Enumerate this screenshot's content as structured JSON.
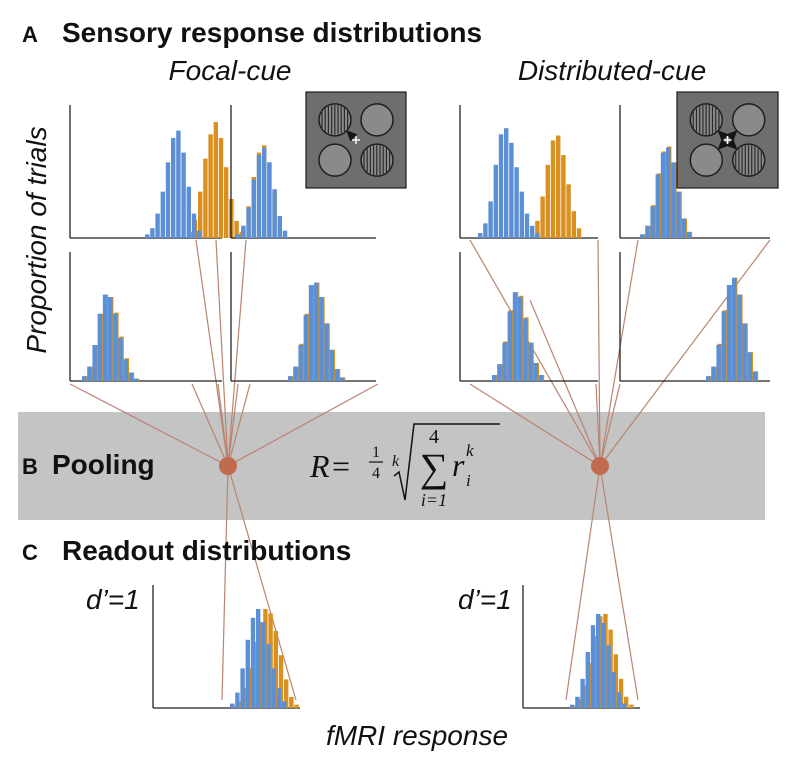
{
  "colors": {
    "blue": "#5b8fd6",
    "orange": "#d9901f",
    "connector": "#b98470",
    "node": "#c06a4e",
    "band": "#c4c4c4",
    "axis": "#222222",
    "inset_bg": "#6e6e6e"
  },
  "section_a": {
    "letter": "A",
    "title": "Sensory response distributions",
    "focal_label": "Focal-cue",
    "distributed_label": "Distributed-cue",
    "y_label": "Proportion of trials"
  },
  "section_b": {
    "letter": "B",
    "title": "Pooling",
    "formula": {
      "lhs": "R",
      "equals": "=",
      "frac_num": "1",
      "frac_den": "4",
      "root_index": "k",
      "sum_upper": "4",
      "sum_lower": "i=1",
      "term": "r",
      "subscript": "i",
      "superscript": "k"
    }
  },
  "section_c": {
    "letter": "C",
    "title": "Readout distributions",
    "left_dprime": "d’=1",
    "right_dprime": "d’=1",
    "x_label": "fMRI response"
  },
  "icons": {
    "focal_inset": "stimulus-four-gratings-single-arrow-icon",
    "distributed_inset": "stimulus-four-gratings-four-arrows-icon"
  },
  "chart_data": [
    {
      "type": "bar",
      "panel": "focal-top-left",
      "series": [
        {
          "color": "blue",
          "values": [
            0.03,
            0.08,
            0.2,
            0.38,
            0.62,
            0.82,
            0.88,
            0.7,
            0.42,
            0.2,
            0.06
          ]
        },
        {
          "color": "orange",
          "values": [
            0,
            0,
            0,
            0.05,
            0.15,
            0.38,
            0.65,
            0.85,
            0.95,
            0.82,
            0.58,
            0.32,
            0.14,
            0.05
          ]
        }
      ]
    },
    {
      "type": "bar",
      "panel": "focal-top-right",
      "series": [
        {
          "color": "blue",
          "values": [
            0.03,
            0.1,
            0.25,
            0.48,
            0.68,
            0.74,
            0.62,
            0.4,
            0.18,
            0.06
          ]
        },
        {
          "color": "orange",
          "values": [
            0.03,
            0.1,
            0.26,
            0.5,
            0.7,
            0.76,
            0.62,
            0.38,
            0.16,
            0.05
          ]
        }
      ]
    },
    {
      "type": "bar",
      "panel": "focal-bottom-left",
      "series": [
        {
          "color": "blue",
          "values": [
            0.04,
            0.12,
            0.3,
            0.56,
            0.72,
            0.7,
            0.56,
            0.36,
            0.18,
            0.07,
            0.02
          ]
        },
        {
          "color": "orange",
          "values": [
            0.04,
            0.12,
            0.3,
            0.56,
            0.72,
            0.7,
            0.57,
            0.37,
            0.19,
            0.07,
            0.02
          ]
        }
      ]
    },
    {
      "type": "bar",
      "panel": "focal-bottom-right",
      "series": [
        {
          "color": "blue",
          "values": [
            0.04,
            0.12,
            0.3,
            0.55,
            0.8,
            0.82,
            0.7,
            0.48,
            0.26,
            0.1,
            0.03
          ]
        },
        {
          "color": "orange",
          "values": [
            0.04,
            0.12,
            0.31,
            0.56,
            0.8,
            0.82,
            0.7,
            0.48,
            0.26,
            0.1,
            0.03
          ]
        }
      ]
    },
    {
      "type": "bar",
      "panel": "distributed-top-left",
      "series": [
        {
          "color": "blue",
          "values": [
            0.04,
            0.12,
            0.3,
            0.6,
            0.85,
            0.9,
            0.78,
            0.58,
            0.38,
            0.2,
            0.1,
            0.04
          ]
        },
        {
          "color": "orange",
          "values": [
            0.04,
            0.14,
            0.34,
            0.6,
            0.8,
            0.84,
            0.68,
            0.44,
            0.22,
            0.08
          ]
        }
      ]
    },
    {
      "type": "bar",
      "panel": "distributed-top-right",
      "series": [
        {
          "color": "blue",
          "values": [
            0.03,
            0.1,
            0.26,
            0.52,
            0.7,
            0.74,
            0.62,
            0.38,
            0.16,
            0.05
          ]
        },
        {
          "color": "orange",
          "values": [
            0.03,
            0.1,
            0.27,
            0.53,
            0.71,
            0.75,
            0.62,
            0.38,
            0.16,
            0.05
          ]
        }
      ]
    },
    {
      "type": "bar",
      "panel": "distributed-bottom-left",
      "series": [
        {
          "color": "blue",
          "values": [
            0.05,
            0.14,
            0.32,
            0.58,
            0.74,
            0.7,
            0.52,
            0.32,
            0.15,
            0.05
          ]
        },
        {
          "color": "orange",
          "values": [
            0.05,
            0.14,
            0.33,
            0.59,
            0.74,
            0.71,
            0.53,
            0.32,
            0.15,
            0.05
          ]
        }
      ]
    },
    {
      "type": "bar",
      "panel": "distributed-bottom-right",
      "series": [
        {
          "color": "blue",
          "values": [
            0.04,
            0.12,
            0.3,
            0.58,
            0.8,
            0.86,
            0.72,
            0.48,
            0.24,
            0.08
          ]
        },
        {
          "color": "orange",
          "values": [
            0.04,
            0.12,
            0.31,
            0.59,
            0.8,
            0.86,
            0.72,
            0.48,
            0.24,
            0.08
          ]
        }
      ]
    },
    {
      "type": "bar",
      "panel": "readout-focal",
      "series": [
        {
          "color": "blue",
          "values": [
            0.04,
            0.14,
            0.36,
            0.62,
            0.82,
            0.9,
            0.78,
            0.58,
            0.36,
            0.18,
            0.06
          ]
        },
        {
          "color": "orange",
          "values": [
            0.02,
            0.06,
            0.18,
            0.36,
            0.6,
            0.78,
            0.9,
            0.86,
            0.7,
            0.48,
            0.26,
            0.1,
            0.03
          ]
        }
      ]
    },
    {
      "type": "bar",
      "panel": "readout-distributed",
      "series": [
        {
          "color": "blue",
          "values": [
            0.03,
            0.1,
            0.26,
            0.5,
            0.74,
            0.84,
            0.76,
            0.56,
            0.32,
            0.14,
            0.04
          ]
        },
        {
          "color": "orange",
          "values": [
            0.02,
            0.08,
            0.2,
            0.4,
            0.64,
            0.82,
            0.84,
            0.7,
            0.48,
            0.26,
            0.1,
            0.03
          ]
        }
      ]
    }
  ]
}
